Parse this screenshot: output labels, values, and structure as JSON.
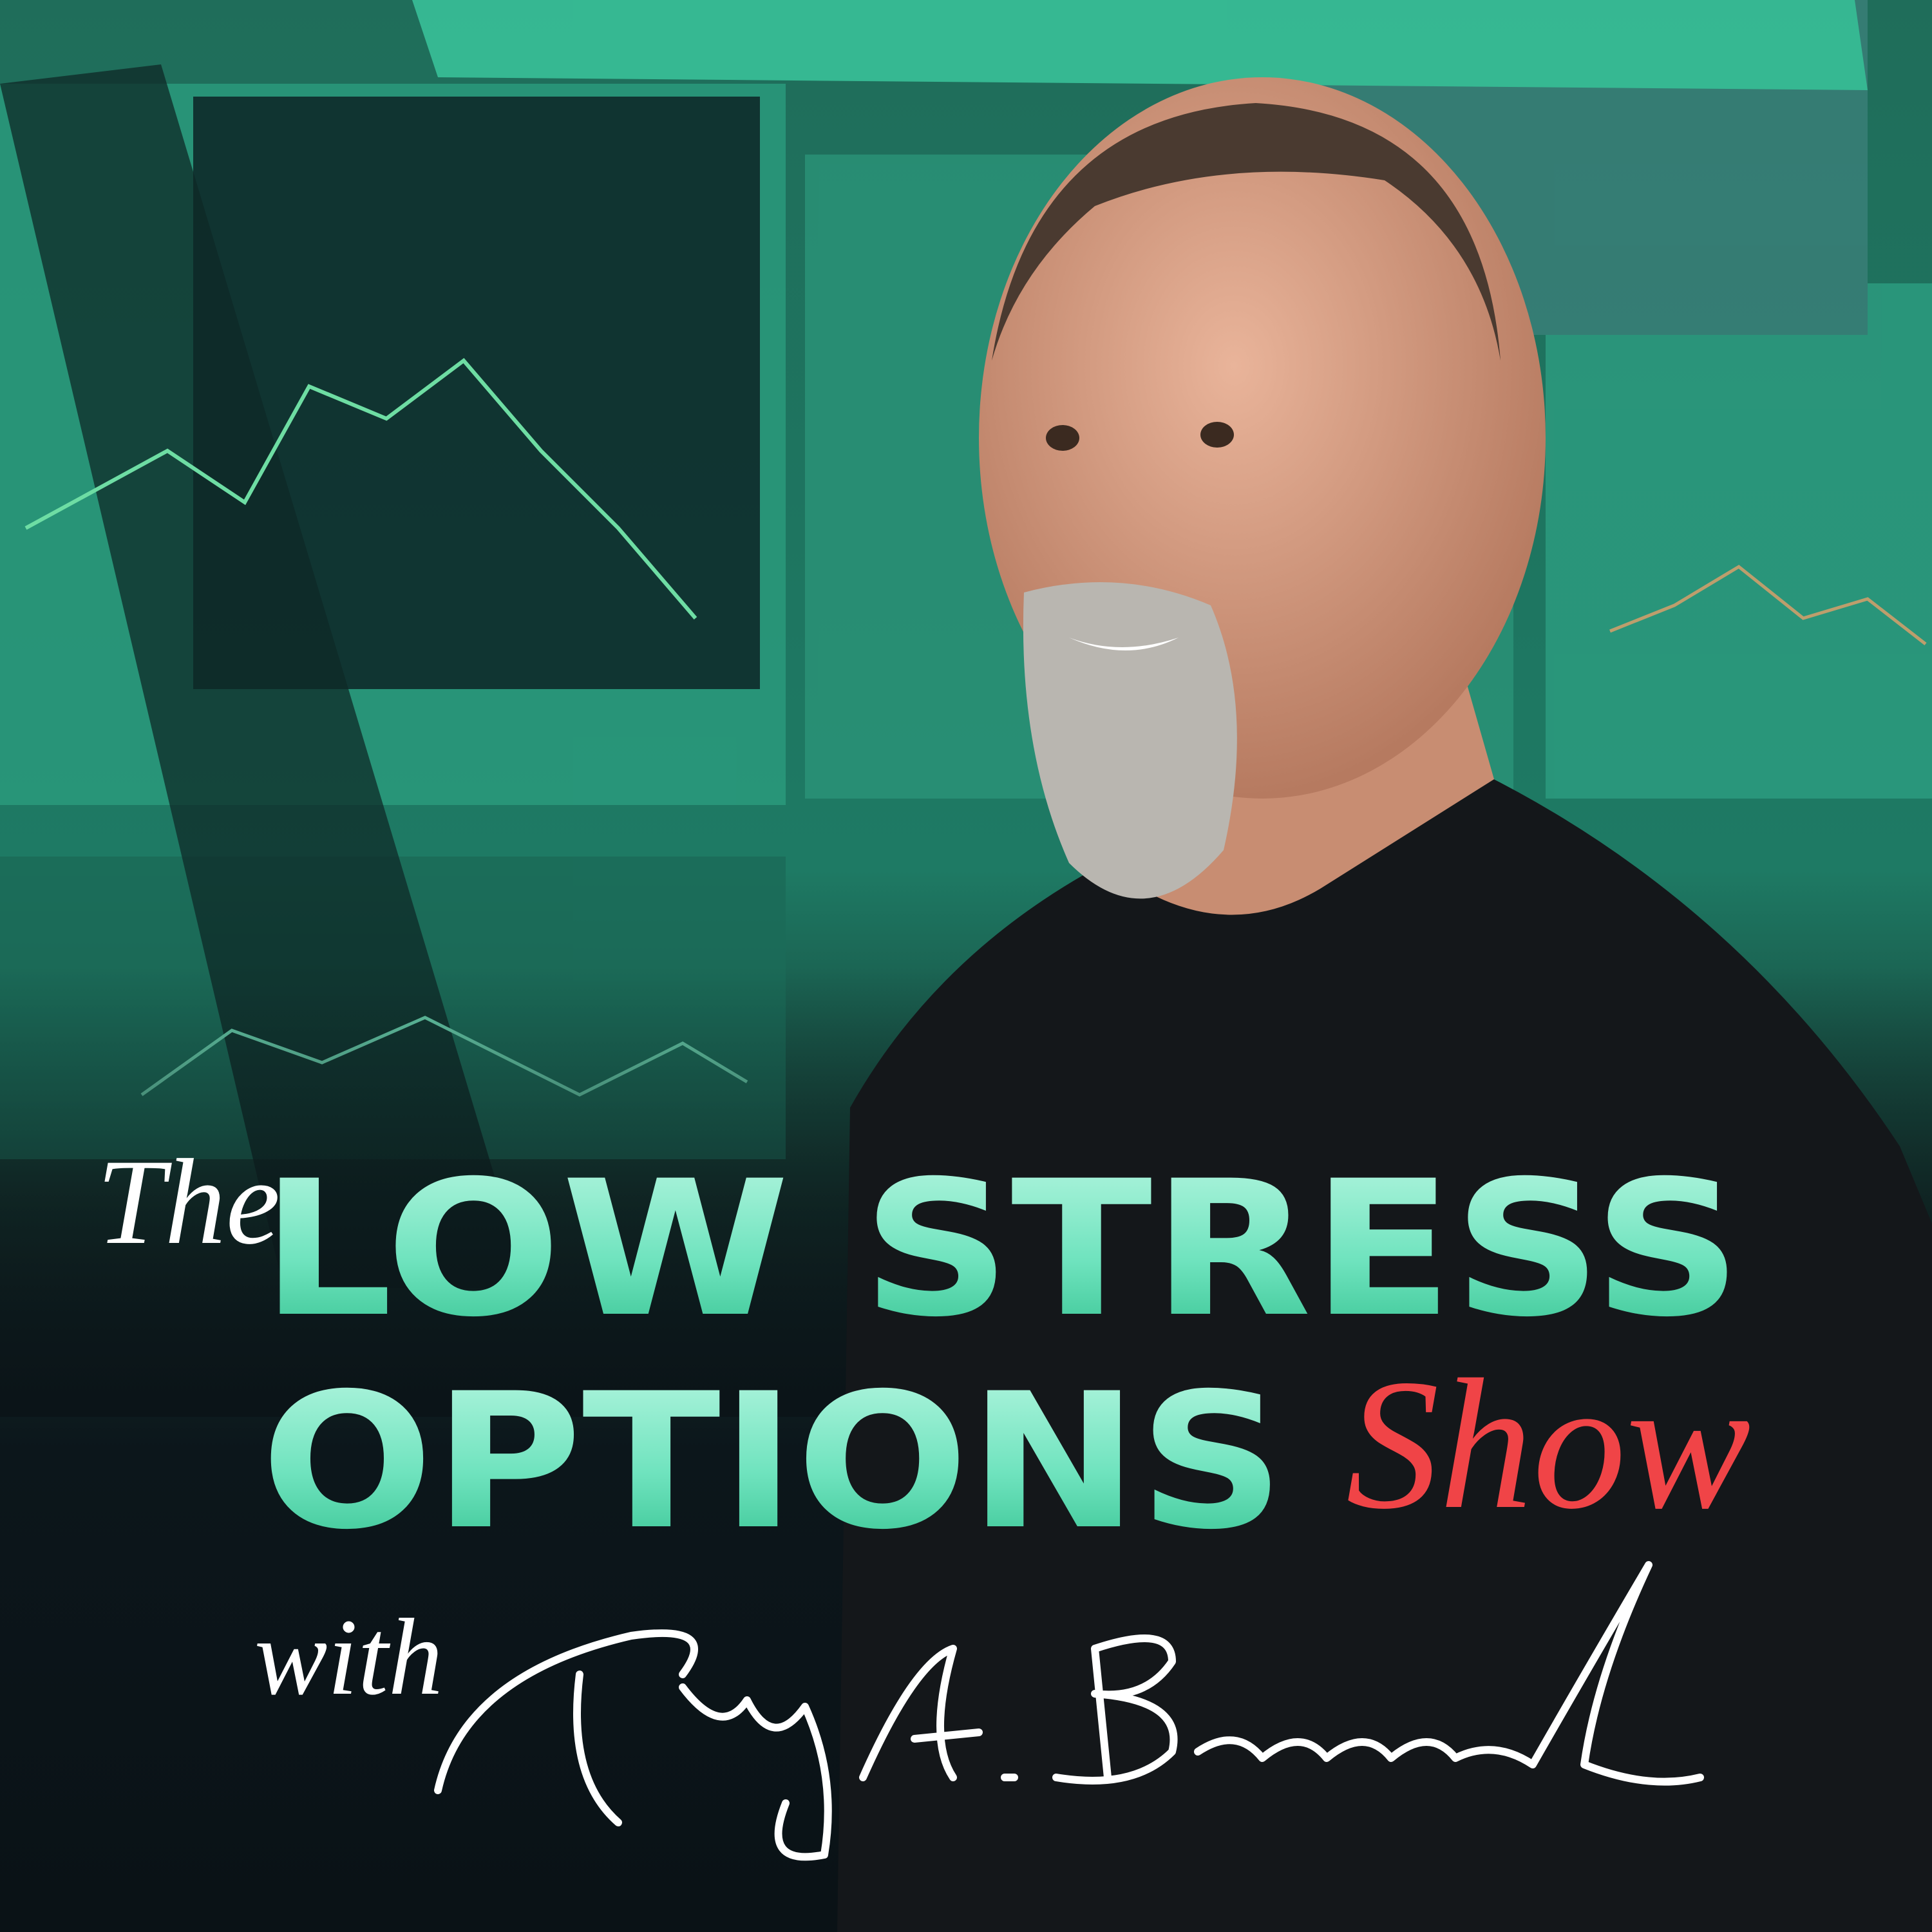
{
  "title": {
    "prefix": "The",
    "line1": "LOW STRESS",
    "line2": "OPTIONS",
    "suffix": "Show",
    "with": "with"
  }
}
